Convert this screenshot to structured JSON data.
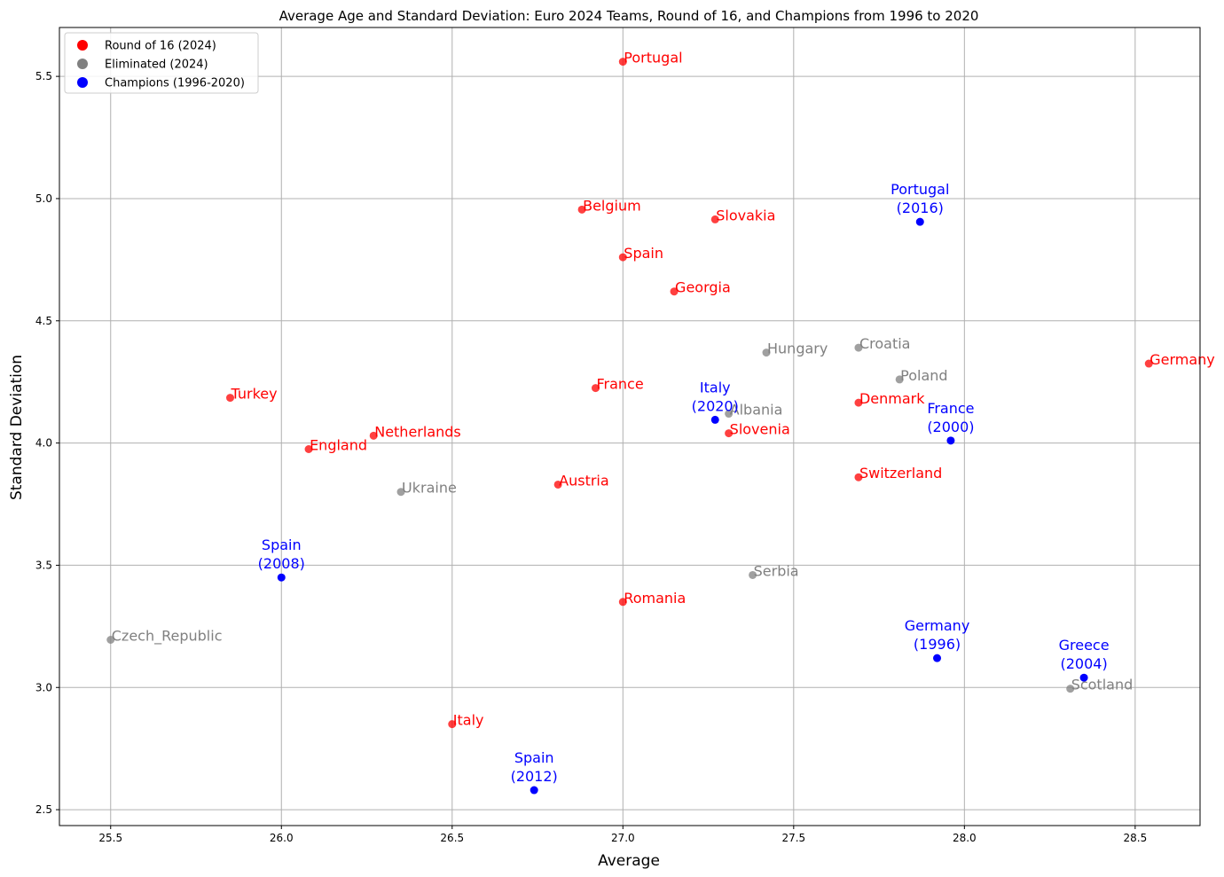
{
  "chart_data": {
    "type": "scatter",
    "title": "Average Age and Standard Deviation: Euro 2024 Teams, Round of 16, and Champions from 1996 to 2020",
    "xlabel": "Average",
    "ylabel": "Standard Deviation",
    "xlim": [
      25.35,
      28.69
    ],
    "ylim": [
      2.435,
      5.7
    ],
    "xticks": [
      "25.5",
      "26.0",
      "26.5",
      "27.0",
      "27.5",
      "28.0",
      "28.5"
    ],
    "yticks": [
      "2.5",
      "3.0",
      "3.5",
      "4.0",
      "4.5",
      "5.0",
      "5.5"
    ],
    "grid": true,
    "legend_position": "top-left",
    "legend": [
      {
        "label": "Round of 16 (2024)",
        "color": "#ff0000"
      },
      {
        "label": "Eliminated (2024)",
        "color": "#808080"
      },
      {
        "label": "Champions (1996-2020)",
        "color": "#0000ff"
      }
    ],
    "series": [
      {
        "name": "Round of 16 (2024)",
        "color": "#ff0000",
        "points": [
          {
            "label": "Portugal",
            "x": 27.0,
            "y": 5.56
          },
          {
            "label": "Belgium",
            "x": 26.88,
            "y": 4.955
          },
          {
            "label": "Slovakia",
            "x": 27.27,
            "y": 4.915
          },
          {
            "label": "Spain",
            "x": 27.0,
            "y": 4.76
          },
          {
            "label": "Georgia",
            "x": 27.15,
            "y": 4.62
          },
          {
            "label": "Germany",
            "x": 28.54,
            "y": 4.325
          },
          {
            "label": "France",
            "x": 26.92,
            "y": 4.225
          },
          {
            "label": "Turkey",
            "x": 25.85,
            "y": 4.185
          },
          {
            "label": "Denmark",
            "x": 27.69,
            "y": 4.165
          },
          {
            "label": "Netherlands",
            "x": 26.27,
            "y": 4.03
          },
          {
            "label": "Slovenia",
            "x": 27.31,
            "y": 4.04
          },
          {
            "label": "England",
            "x": 26.08,
            "y": 3.975
          },
          {
            "label": "Switzerland",
            "x": 27.69,
            "y": 3.86
          },
          {
            "label": "Austria",
            "x": 26.81,
            "y": 3.83
          },
          {
            "label": "Romania",
            "x": 27.0,
            "y": 3.35
          },
          {
            "label": "Italy",
            "x": 26.5,
            "y": 2.85
          }
        ]
      },
      {
        "name": "Eliminated (2024)",
        "color": "#808080",
        "points": [
          {
            "label": "Croatia",
            "x": 27.69,
            "y": 4.39
          },
          {
            "label": "Hungary",
            "x": 27.42,
            "y": 4.37
          },
          {
            "label": "Poland",
            "x": 27.81,
            "y": 4.26
          },
          {
            "label": "Albania",
            "x": 27.31,
            "y": 4.12
          },
          {
            "label": "Ukraine",
            "x": 26.35,
            "y": 3.8
          },
          {
            "label": "Serbia",
            "x": 27.38,
            "y": 3.46
          },
          {
            "label": "Czech_Republic",
            "x": 25.5,
            "y": 3.195
          },
          {
            "label": "Scotland",
            "x": 28.31,
            "y": 2.995
          }
        ]
      },
      {
        "name": "Champions (1996-2020)",
        "color": "#0000ff",
        "points": [
          {
            "label": "Portugal\n(2016)",
            "x": 27.87,
            "y": 4.905
          },
          {
            "label": "Italy\n(2020)",
            "x": 27.27,
            "y": 4.095
          },
          {
            "label": "France\n(2000)",
            "x": 27.96,
            "y": 4.01
          },
          {
            "label": "Spain\n(2008)",
            "x": 26.0,
            "y": 3.45
          },
          {
            "label": "Germany\n(1996)",
            "x": 27.92,
            "y": 3.12
          },
          {
            "label": "Greece\n(2004)",
            "x": 28.35,
            "y": 3.04
          },
          {
            "label": "Spain\n(2012)",
            "x": 26.74,
            "y": 2.58
          }
        ]
      }
    ]
  }
}
